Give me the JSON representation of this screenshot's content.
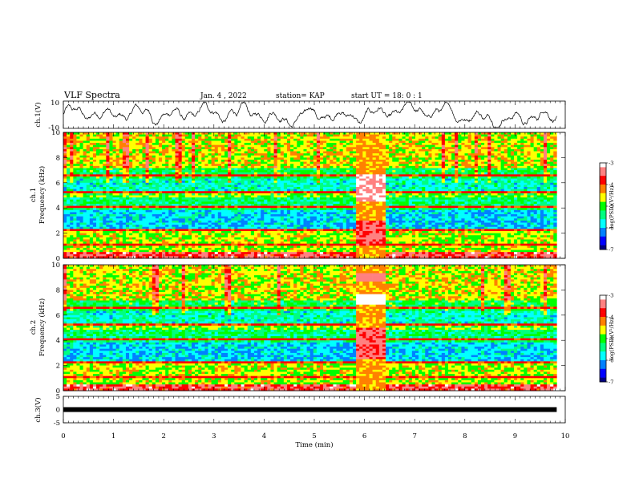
{
  "header": {
    "title": "VLF Spectra",
    "date": "Jan. 4 , 2022",
    "station": "station= KAP",
    "start": "start UT =  18: 0  : 1"
  },
  "colors": {
    "scale": [
      "#000080",
      "#0000ff",
      "#0080ff",
      "#00ffff",
      "#00ff80",
      "#00ff00",
      "#ffff00",
      "#ff8000",
      "#ff0000",
      "#ff8080",
      "#ffffff"
    ]
  },
  "chart_data": [
    {
      "type": "line",
      "name": "ch1-waveform",
      "ylabel": "ch.1(V)",
      "ylim": [
        -10,
        10
      ],
      "yticks": [
        "10",
        "-10"
      ],
      "xlim": [
        0,
        10
      ]
    },
    {
      "type": "heatmap",
      "name": "ch1-spectrogram",
      "ylabel": "ch.1",
      "ylabel2": "Frequency (kHz)",
      "ylim": [
        0,
        10
      ],
      "yticks": [
        "0",
        "2",
        "4",
        "6",
        "8",
        "10"
      ],
      "xlim": [
        0,
        10
      ],
      "data_end_min": 9.83,
      "emission_interval_min": [
        5.85,
        6.45
      ],
      "colorbar": {
        "label": "log(PSD)(V²/Hz)",
        "range": [
          -7,
          -3
        ],
        "ticks": [
          "-3",
          "-4",
          "-5",
          "-6",
          "-7"
        ]
      }
    },
    {
      "type": "heatmap",
      "name": "ch2-spectrogram",
      "ylabel": "ch.2",
      "ylabel2": "Frequency (kHz)",
      "ylim": [
        0,
        10
      ],
      "yticks": [
        "0",
        "2",
        "4",
        "6",
        "8",
        "10"
      ],
      "xlim": [
        0,
        10
      ],
      "data_end_min": 9.83,
      "emission_interval_min": [
        5.85,
        6.45
      ],
      "colorbar": {
        "label": "log(PSD)(V²/Hz)",
        "range": [
          -7,
          -3
        ],
        "ticks": [
          "-3",
          "-4",
          "-5",
          "-6",
          "-7"
        ]
      }
    },
    {
      "type": "line",
      "name": "ch3-level",
      "ylabel": "ch.3(V)",
      "ylim": [
        -5,
        5
      ],
      "yticks": [
        "5",
        "0",
        "-5"
      ],
      "xlim": [
        0,
        10
      ],
      "xticks": [
        "0",
        "1",
        "2",
        "3",
        "4",
        "5",
        "6",
        "7",
        "8",
        "9",
        "10"
      ],
      "xlabel": "Time (min)",
      "level_v": 0
    }
  ]
}
